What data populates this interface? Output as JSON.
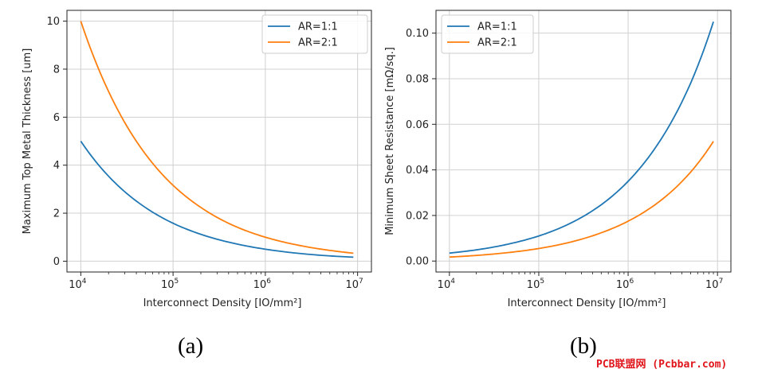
{
  "chart_data": [
    {
      "type": "line",
      "panel_caption": "(a)",
      "xlabel": "Interconnect Density [IO/mm²]",
      "ylabel": "Maximum Top Metal Thickness [um]",
      "xscale": "log",
      "xlim": [
        10000,
        10000000
      ],
      "xticks": [
        10000,
        100000,
        1000000,
        10000000
      ],
      "xtick_base": "10",
      "xtick_exponents": [
        "4",
        "5",
        "6",
        "7"
      ],
      "ylim": [
        -0.45,
        10.45
      ],
      "yticks": [
        0,
        2,
        4,
        6,
        8,
        10
      ],
      "ytick_labels": [
        "0",
        "2",
        "4",
        "6",
        "8",
        "10"
      ],
      "grid": true,
      "legend_placement": "upper-right",
      "series": [
        {
          "name": "AR=1:1",
          "color": "#1f77b4",
          "x": [
            10000,
            20000,
            50000,
            100000,
            200000,
            500000,
            1000000,
            2000000,
            5000000,
            9000000
          ],
          "y": [
            5.0,
            3.54,
            2.24,
            1.58,
            1.12,
            0.71,
            0.5,
            0.35,
            0.22,
            0.167
          ]
        },
        {
          "name": "AR=2:1",
          "color": "#ff7f0e",
          "x": [
            10000,
            20000,
            50000,
            100000,
            200000,
            500000,
            1000000,
            2000000,
            5000000,
            9000000
          ],
          "y": [
            10.0,
            7.07,
            4.47,
            3.16,
            2.24,
            1.41,
            1.0,
            0.71,
            0.45,
            0.333
          ]
        }
      ]
    },
    {
      "type": "line",
      "panel_caption": "(b)",
      "xlabel": "Interconnect Density [IO/mm²]",
      "ylabel": "Minimum Sheet Resistance [mΩ/sq.]",
      "xscale": "log",
      "xlim": [
        10000,
        10000000
      ],
      "xticks": [
        10000,
        100000,
        1000000,
        10000000
      ],
      "xtick_base": "10",
      "xtick_exponents": [
        "4",
        "5",
        "6",
        "7"
      ],
      "ylim": [
        -0.0048,
        0.11
      ],
      "yticks": [
        0,
        0.02,
        0.04,
        0.06,
        0.08,
        0.1
      ],
      "ytick_labels": [
        "0.00",
        "0.02",
        "0.04",
        "0.06",
        "0.08",
        "0.10"
      ],
      "grid": true,
      "legend_placement": "upper-left",
      "series": [
        {
          "name": "AR=1:1",
          "color": "#1f77b4",
          "x": [
            10000,
            20000,
            50000,
            100000,
            200000,
            500000,
            1000000,
            2000000,
            5000000,
            9000000
          ],
          "y": [
            0.0035,
            0.0049,
            0.0078,
            0.011,
            0.0156,
            0.0247,
            0.035,
            0.0495,
            0.078,
            0.105
          ]
        },
        {
          "name": "AR=2:1",
          "color": "#ff7f0e",
          "x": [
            10000,
            20000,
            50000,
            100000,
            200000,
            500000,
            1000000,
            2000000,
            5000000,
            9000000
          ],
          "y": [
            0.00175,
            0.00247,
            0.0039,
            0.0055,
            0.0078,
            0.0124,
            0.0175,
            0.0247,
            0.039,
            0.0525
          ]
        }
      ]
    }
  ],
  "watermark": "PCB联盟网 (Pcbbar.com)"
}
